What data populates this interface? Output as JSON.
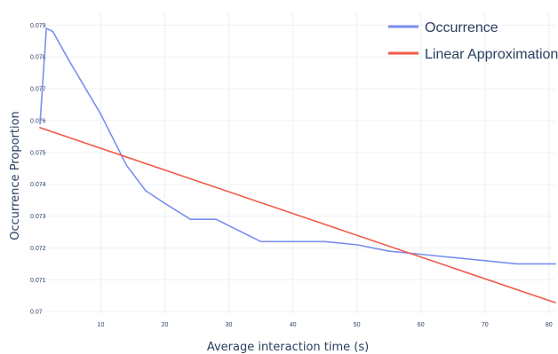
{
  "chart_data": {
    "type": "line",
    "xlabel": "Average interaction time (s)",
    "ylabel": "Occurrence Proportion",
    "xlim": [
      0.5,
      81
    ],
    "ylim": [
      0.06995,
      0.0794
    ],
    "x_ticks": [
      10,
      20,
      30,
      40,
      50,
      60,
      70,
      80
    ],
    "y_ticks": [
      0.07,
      0.071,
      0.072,
      0.073,
      0.074,
      0.075,
      0.076,
      0.077,
      0.078,
      0.079
    ],
    "y_tick_labels": [
      "0.07",
      "0.071",
      "0.072",
      "0.073",
      "0.074",
      "0.075",
      "0.076",
      "0.077",
      "0.078",
      "0.079"
    ],
    "grid": true,
    "legend_position": "top-right",
    "series": [
      {
        "name": "Occurrence",
        "color": "#7b8ef0",
        "x": [
          0.5,
          1.5,
          2.5,
          5,
          10,
          14,
          17,
          20,
          24,
          26,
          28,
          29,
          32,
          35,
          40,
          45,
          50,
          55,
          60,
          65,
          70,
          75,
          78,
          81
        ],
        "y": [
          0.0759,
          0.0789,
          0.0788,
          0.0779,
          0.0762,
          0.0746,
          0.0738,
          0.0734,
          0.0729,
          0.0729,
          0.0729,
          0.0728,
          0.0725,
          0.0722,
          0.0722,
          0.0722,
          0.0721,
          0.0719,
          0.0718,
          0.0717,
          0.0716,
          0.0715,
          0.0715,
          0.0715
        ]
      },
      {
        "name": "Linear Approximation",
        "color": "#f05a46",
        "x": [
          0.5,
          81
        ],
        "y": [
          0.07578,
          0.07028
        ]
      }
    ]
  }
}
